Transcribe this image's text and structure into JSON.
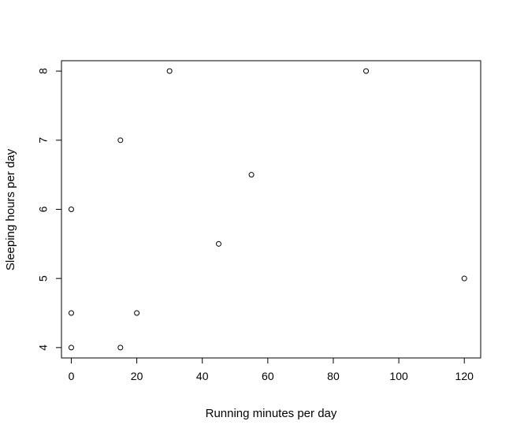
{
  "chart_data": {
    "type": "scatter",
    "title": "",
    "xlabel": "Running minutes per day",
    "ylabel": "Sleeping hours per day",
    "xlim": [
      -3,
      125
    ],
    "ylim": [
      3.85,
      8.15
    ],
    "xticks": [
      0,
      20,
      40,
      60,
      80,
      100,
      120
    ],
    "yticks": [
      4,
      5,
      6,
      7,
      8
    ],
    "grid": false,
    "legend": "none",
    "marker": "open-circle",
    "points": [
      {
        "x": 0,
        "y": 4
      },
      {
        "x": 0,
        "y": 4.5
      },
      {
        "x": 0,
        "y": 6
      },
      {
        "x": 15,
        "y": 4
      },
      {
        "x": 15,
        "y": 7
      },
      {
        "x": 20,
        "y": 4.5
      },
      {
        "x": 30,
        "y": 8
      },
      {
        "x": 45,
        "y": 5.5
      },
      {
        "x": 55,
        "y": 6.5
      },
      {
        "x": 90,
        "y": 8
      },
      {
        "x": 120,
        "y": 5
      }
    ],
    "colors": {
      "axis": "#000000",
      "marker": "#000000",
      "background": "#ffffff"
    }
  }
}
